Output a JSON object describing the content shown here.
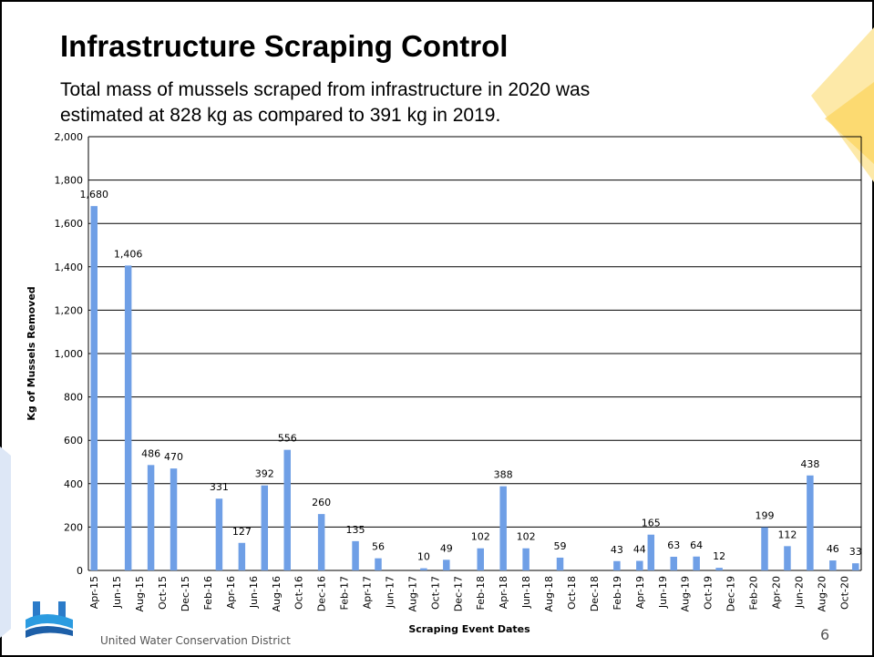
{
  "slide": {
    "title": "Infrastructure Scraping Control",
    "subtitle": [
      "Total mass of mussels scraped from infrastructure in 2020 was",
      "estimated at 828 kg as compared to 391 kg in 2019."
    ],
    "footer": "United Water Conservation District",
    "page_number": "6"
  },
  "chart_data": {
    "type": "bar",
    "x_label": "Scraping Event Dates",
    "y_label": "Kg of Mussels Removed",
    "categories": [
      "Apr-15",
      null,
      "Jun-15",
      null,
      "Aug-15",
      null,
      "Oct-15",
      null,
      "Dec-15",
      null,
      "Feb-16",
      null,
      "Apr-16",
      null,
      "Jun-16",
      null,
      "Aug-16",
      null,
      "Oct-16",
      null,
      "Dec-16",
      null,
      "Feb-17",
      null,
      "Apr-17",
      null,
      "Jun-17",
      null,
      "Aug-17",
      null,
      "Oct-17",
      null,
      "Dec-17",
      null,
      "Feb-18",
      null,
      "Apr-18",
      null,
      "Jun-18",
      null,
      "Aug-18",
      null,
      "Oct-18",
      null,
      "Dec-18",
      null,
      "Feb-19",
      null,
      "Apr-19",
      null,
      "Jun-19",
      null,
      "Aug-19",
      null,
      "Oct-19",
      null,
      "Dec-19",
      null,
      "Feb-20",
      null,
      "Apr-20",
      null,
      "Jun-20",
      null,
      "Aug-20",
      null,
      "Oct-20",
      null
    ],
    "values": [
      1680,
      null,
      null,
      1406,
      null,
      486,
      null,
      470,
      null,
      null,
      null,
      331,
      null,
      127,
      null,
      392,
      null,
      556,
      null,
      null,
      260,
      null,
      null,
      135,
      null,
      56,
      null,
      null,
      null,
      10,
      null,
      49,
      null,
      null,
      102,
      null,
      388,
      null,
      102,
      null,
      null,
      59,
      null,
      null,
      null,
      null,
      43,
      null,
      44,
      165,
      null,
      63,
      null,
      64,
      null,
      12,
      null,
      null,
      null,
      199,
      null,
      112,
      null,
      438,
      null,
      46,
      null,
      33
    ],
    "value_labels": [
      "1,680",
      null,
      null,
      "1,406",
      null,
      "486",
      null,
      "470",
      null,
      null,
      null,
      "331",
      null,
      "127",
      null,
      "392",
      null,
      "556",
      null,
      null,
      "260",
      null,
      null,
      "135",
      null,
      "56",
      null,
      null,
      null,
      "10",
      null,
      "49",
      null,
      null,
      "102",
      null,
      "388",
      null,
      "102",
      null,
      null,
      "59",
      null,
      null,
      null,
      null,
      "43",
      null,
      "44",
      "165",
      null,
      "63",
      null,
      "64",
      null,
      "12",
      null,
      null,
      null,
      "199",
      null,
      "112",
      null,
      "438",
      null,
      "46",
      null,
      "33"
    ],
    "color": "#6f9fe6",
    "ylim": [
      0,
      2000
    ],
    "yticks": [
      0,
      200,
      400,
      600,
      800,
      {
        "value": 1000,
        "label": "1,000"
      },
      {
        "value": 1200,
        "label": "1,200"
      },
      {
        "value": 1400,
        "label": "1,400"
      },
      {
        "value": 1600,
        "label": "1,600"
      },
      {
        "value": 1800,
        "label": "1,800"
      },
      {
        "value": 2000,
        "label": "2,000"
      }
    ],
    "grid": true
  }
}
